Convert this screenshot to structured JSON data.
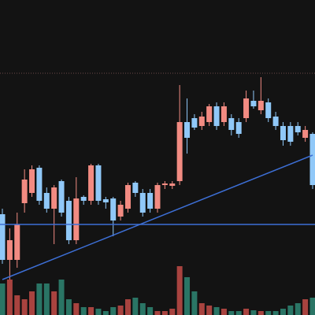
{
  "chart_data": {
    "type": "candlestick",
    "open": [
      128,
      70,
      70,
      142,
      155,
      187,
      155,
      135,
      170,
      145,
      95,
      150,
      145,
      190,
      147,
      148,
      125,
      135,
      168,
      155,
      155,
      135,
      165,
      164,
      170,
      245,
      250,
      240,
      245,
      265,
      245,
      250,
      245,
      250,
      272,
      260,
      270,
      252,
      240,
      240,
      240,
      225,
      230
    ],
    "high": [
      135,
      110,
      130,
      185,
      190,
      190,
      162,
      165,
      172,
      150,
      175,
      152,
      192,
      192,
      150,
      150,
      145,
      168,
      170,
      160,
      160,
      168,
      170,
      170,
      292,
      275,
      255,
      258,
      268,
      270,
      270,
      255,
      250,
      285,
      285,
      302,
      275,
      258,
      245,
      245,
      245,
      240,
      232
    ],
    "low": [
      65,
      45,
      60,
      130,
      150,
      140,
      130,
      90,
      125,
      90,
      90,
      140,
      140,
      140,
      135,
      100,
      120,
      130,
      150,
      125,
      130,
      130,
      160,
      160,
      165,
      205,
      235,
      235,
      240,
      235,
      240,
      228,
      225,
      245,
      262,
      255,
      245,
      235,
      215,
      215,
      228,
      220,
      160
    ],
    "close": [
      70,
      95,
      115,
      172,
      185,
      145,
      135,
      162,
      130,
      95,
      148,
      145,
      190,
      145,
      143,
      120,
      140,
      165,
      155,
      130,
      135,
      165,
      167,
      167,
      245,
      225,
      238,
      252,
      265,
      240,
      265,
      235,
      230,
      275,
      265,
      272,
      250,
      240,
      222,
      220,
      232,
      235,
      165
    ],
    "volume": [
      40,
      45,
      25,
      20,
      30,
      40,
      40,
      30,
      45,
      20,
      15,
      10,
      10,
      8,
      5,
      10,
      12,
      20,
      22,
      15,
      10,
      5,
      5,
      8,
      62,
      48,
      30,
      15,
      12,
      10,
      8,
      5,
      5,
      8,
      6,
      5,
      5,
      5,
      8,
      12,
      15,
      20,
      22
    ],
    "ylim": [
      0,
      400
    ],
    "volume_lim": [
      0,
      100
    ],
    "up_color": "#f28b82",
    "down_color": "#90c8f8",
    "volume_up_color": "#a8433f",
    "volume_down_color": "#2a7565",
    "horizontal_line": 115,
    "dotted_line": 307,
    "trend_line": {
      "start": [
        0,
        45
      ],
      "end": [
        42,
        203
      ]
    },
    "line_color": "#3d6fd6"
  }
}
